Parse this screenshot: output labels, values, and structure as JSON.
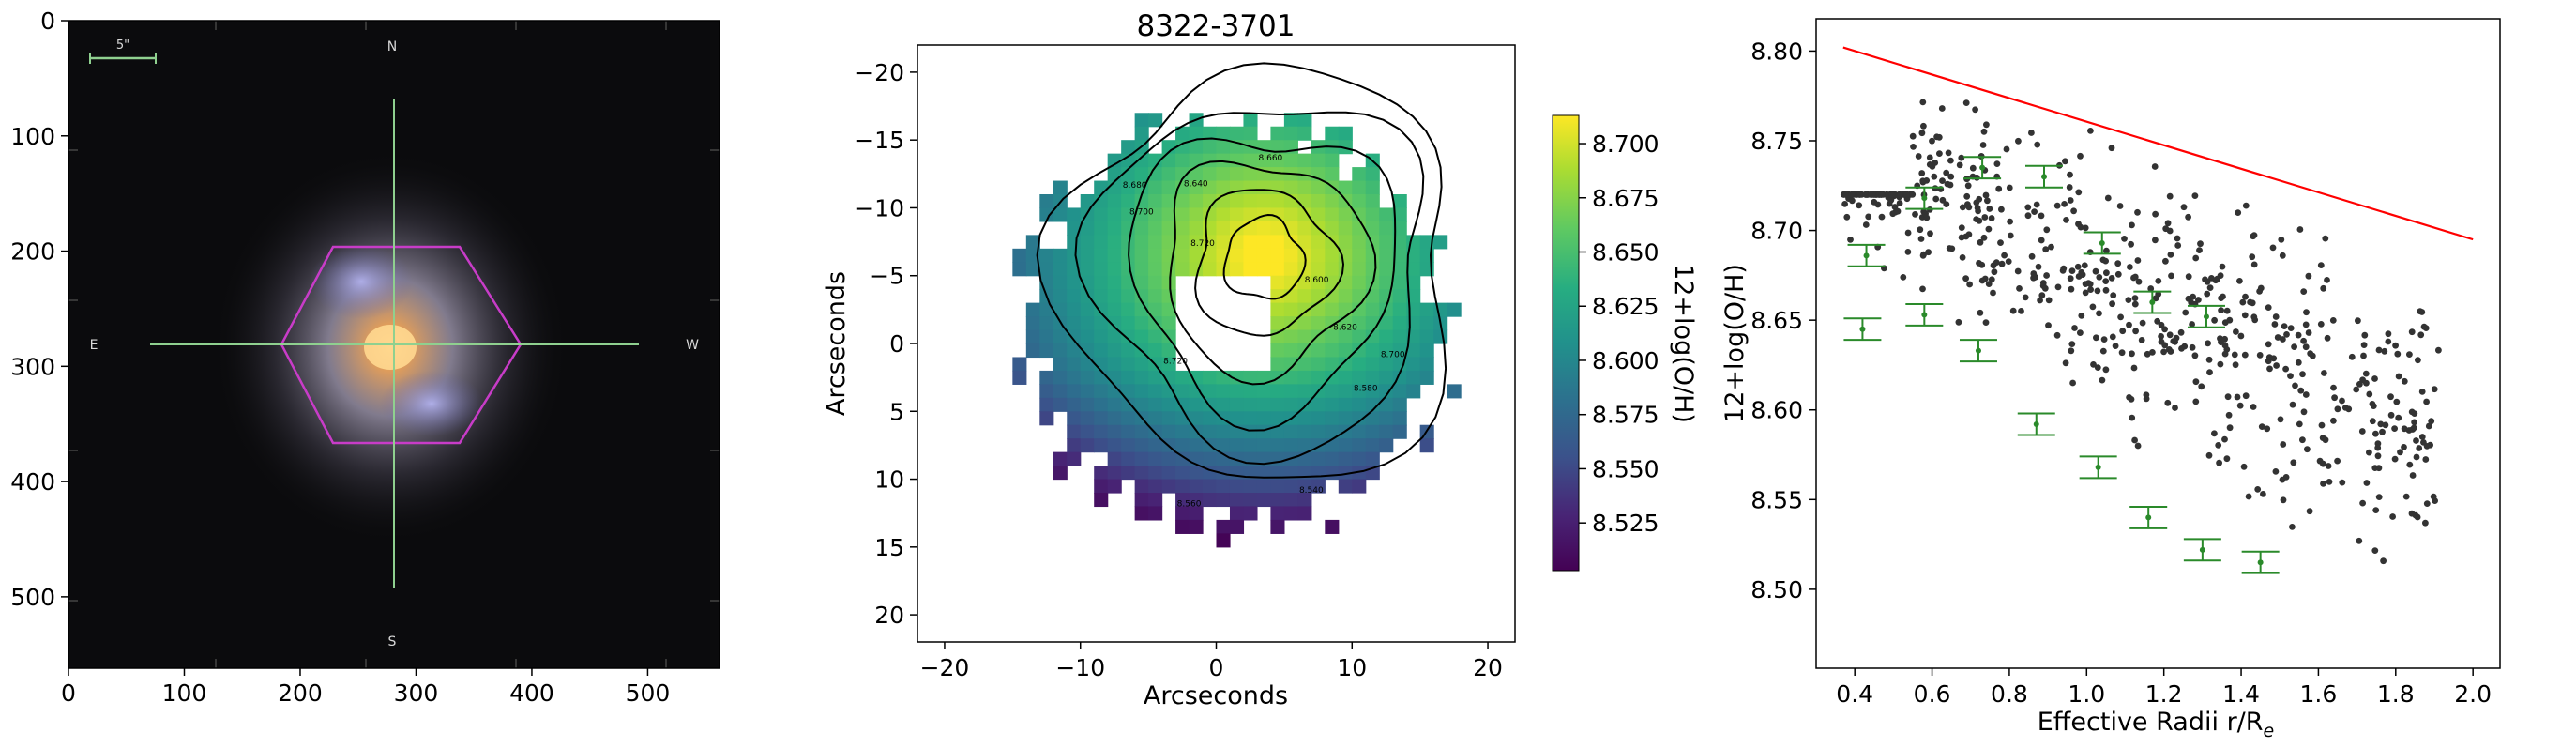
{
  "chart_data": [
    {
      "type": "image",
      "xticks": [
        "0",
        "100",
        "200",
        "300",
        "400",
        "500"
      ],
      "yticks": [
        "0",
        "100",
        "200",
        "300",
        "400",
        "500"
      ],
      "xlim": [
        0,
        562
      ],
      "ylim": [
        0,
        562
      ],
      "compass": {
        "n": "N",
        "s": "S",
        "e": "E",
        "w": "W"
      },
      "scalebar_label": "5\"",
      "hexagon_color": "#c83cc8",
      "crosshair_color": "#8fd08f"
    },
    {
      "type": "heatmap",
      "title": "8322-3701",
      "xlabel": "Arcseconds",
      "ylabel": "Arcseconds",
      "xticks": [
        "−20",
        "−10",
        "0",
        "10",
        "20"
      ],
      "yticks": [
        "−20",
        "−15",
        "−10",
        "−5",
        "0",
        "5",
        "10",
        "15",
        "20"
      ],
      "xlim": [
        -22,
        22
      ],
      "ylim": [
        -22,
        22
      ],
      "colorbar": {
        "label": "12+log(O/H)",
        "ticks": [
          "8.700",
          "8.675",
          "8.650",
          "8.625",
          "8.600",
          "8.575",
          "8.550",
          "8.525"
        ],
        "range": [
          8.503,
          8.713
        ],
        "colormap": "viridis"
      },
      "contour_labels": [
        "8.720",
        "8.700",
        "8.680",
        "8.660",
        "8.640",
        "8.620",
        "8.600",
        "8.580",
        "8.560",
        "8.540"
      ]
    },
    {
      "type": "scatter",
      "xlabel": "Effective Radii r/R",
      "xlabel_sub": "e",
      "ylabel": "12+log(O/H)",
      "xticks": [
        "0.4",
        "0.6",
        "0.8",
        "1.0",
        "1.2",
        "1.4",
        "1.6",
        "1.8",
        "2.0"
      ],
      "yticks": [
        "8.50",
        "8.55",
        "8.60",
        "8.65",
        "8.70",
        "8.75",
        "8.80"
      ],
      "xlim": [
        0.3,
        2.07
      ],
      "ylim": [
        8.456,
        8.818
      ],
      "fit_line": {
        "x": [
          0.37,
          2.0
        ],
        "y": [
          8.802,
          8.695
        ],
        "color": "#ff0000"
      },
      "binned_means": [
        {
          "x": 0.42,
          "y": 8.645
        },
        {
          "x": 0.43,
          "y": 8.686
        },
        {
          "x": 0.58,
          "y": 8.653
        },
        {
          "x": 0.58,
          "y": 8.718
        },
        {
          "x": 0.72,
          "y": 8.633
        },
        {
          "x": 0.73,
          "y": 8.735
        },
        {
          "x": 0.87,
          "y": 8.592
        },
        {
          "x": 0.89,
          "y": 8.73
        },
        {
          "x": 1.03,
          "y": 8.568
        },
        {
          "x": 1.04,
          "y": 8.693
        },
        {
          "x": 1.16,
          "y": 8.54
        },
        {
          "x": 1.17,
          "y": 8.66
        },
        {
          "x": 1.3,
          "y": 8.522
        },
        {
          "x": 1.31,
          "y": 8.652
        },
        {
          "x": 1.45,
          "y": 8.515
        }
      ],
      "errorbar_color": "#2a8a2a",
      "points_color": "#333333"
    }
  ]
}
